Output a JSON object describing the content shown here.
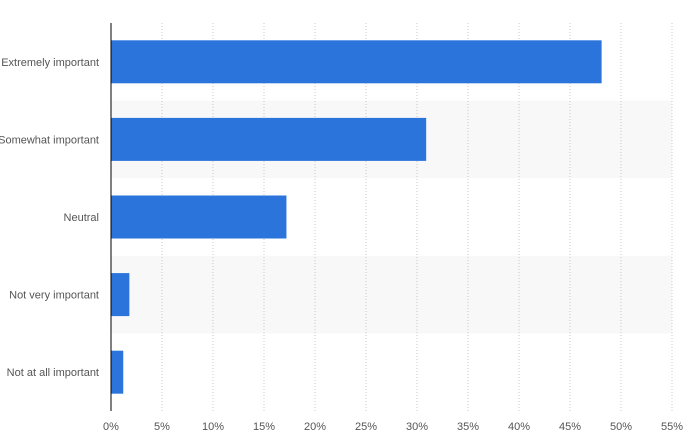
{
  "chart_data": {
    "type": "bar",
    "orientation": "horizontal",
    "categories": [
      "Extremely important",
      "Somewhat important",
      "Neutral",
      "Not very important",
      "Not at all important"
    ],
    "values": [
      48.1,
      30.9,
      17.2,
      1.8,
      1.2
    ],
    "xlim": [
      0,
      55
    ],
    "xticks": [
      "0%",
      "5%",
      "10%",
      "15%",
      "20%",
      "25%",
      "30%",
      "35%",
      "40%",
      "45%",
      "50%",
      "55%"
    ],
    "title": "",
    "xlabel": "",
    "ylabel": "",
    "grid": true,
    "bar_color": "#2a74db",
    "band_color": "#f8f8f8",
    "grid_color": "#c8c8c8",
    "axis_color": "#000000",
    "label_color": "#555555"
  }
}
